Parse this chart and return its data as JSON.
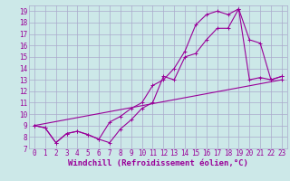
{
  "background_color": "#cce8e8",
  "grid_color": "#aaaacc",
  "line_color": "#990099",
  "xlabel": "Windchill (Refroidissement éolien,°C)",
  "xlim": [
    -0.5,
    23.5
  ],
  "ylim": [
    7,
    19.5
  ],
  "xticks": [
    0,
    1,
    2,
    3,
    4,
    5,
    6,
    7,
    8,
    9,
    10,
    11,
    12,
    13,
    14,
    15,
    16,
    17,
    18,
    19,
    20,
    21,
    22,
    23
  ],
  "yticks": [
    7,
    8,
    9,
    10,
    11,
    12,
    13,
    14,
    15,
    16,
    17,
    18,
    19
  ],
  "line1_x": [
    0,
    1,
    2,
    3,
    4,
    5,
    6,
    7,
    8,
    9,
    10,
    11,
    12,
    13,
    14,
    15,
    16,
    17,
    18,
    19,
    20,
    21,
    22,
    23
  ],
  "line1_y": [
    9.0,
    8.8,
    7.5,
    8.3,
    8.5,
    8.2,
    7.8,
    7.5,
    8.7,
    9.5,
    10.5,
    11.0,
    13.3,
    13.0,
    15.0,
    15.3,
    16.5,
    17.5,
    17.5,
    19.2,
    16.5,
    16.2,
    13.0,
    13.3
  ],
  "line2_x": [
    0,
    1,
    2,
    3,
    4,
    5,
    6,
    7,
    8,
    9,
    10,
    11,
    12,
    13,
    14,
    15,
    16,
    17,
    18,
    19,
    20,
    21,
    22,
    23
  ],
  "line2_y": [
    9.0,
    8.8,
    7.5,
    8.3,
    8.5,
    8.2,
    7.8,
    9.3,
    9.8,
    10.5,
    11.0,
    12.5,
    13.0,
    14.0,
    15.5,
    17.8,
    18.7,
    19.0,
    18.7,
    19.2,
    13.0,
    13.2,
    13.0,
    13.3
  ],
  "line3_x": [
    0,
    23
  ],
  "line3_y": [
    9.0,
    13.0
  ],
  "markersize": 3,
  "linewidth": 0.8,
  "tick_fontsize": 5.5,
  "xlabel_fontsize": 6.5
}
